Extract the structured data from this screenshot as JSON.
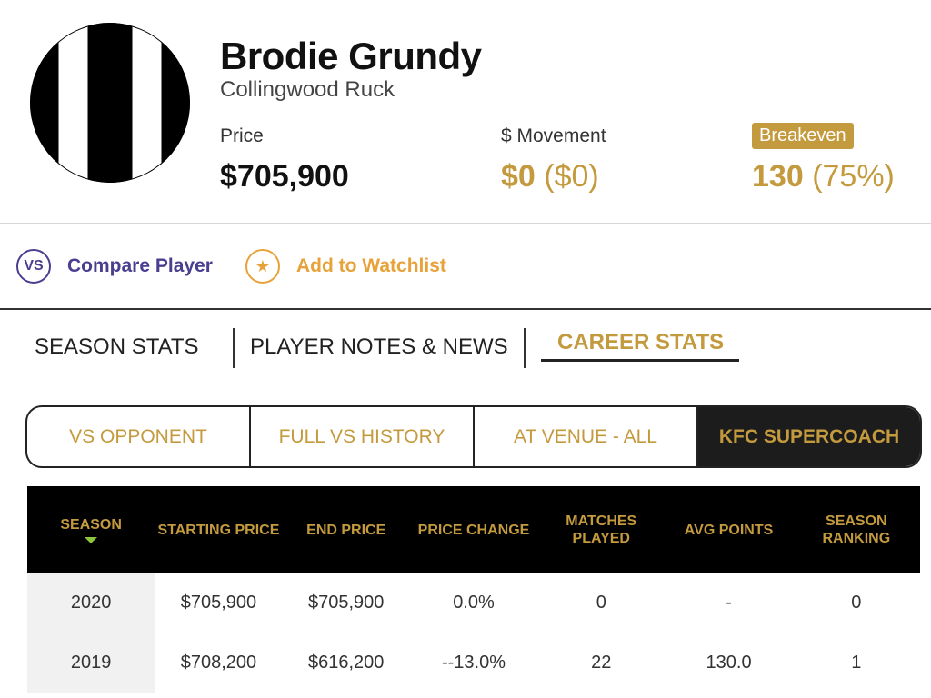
{
  "player": {
    "name": "Brodie Grundy",
    "team_position": "Collingwood Ruck",
    "price_label": "Price",
    "price_value": "$705,900",
    "movement_label": "$ Movement",
    "movement_value": "$0",
    "movement_paren": "($0)",
    "breakeven_label": "Breakeven",
    "breakeven_value": "130",
    "breakeven_paren": "(75%)"
  },
  "actions": {
    "compare_icon": "VS",
    "compare_label": "Compare Player",
    "watchlist_icon": "★",
    "watchlist_label": "Add to Watchlist"
  },
  "tabs": [
    {
      "label": "SEASON STATS"
    },
    {
      "label": "PLAYER NOTES & NEWS"
    },
    {
      "label": "CAREER STATS"
    }
  ],
  "subtabs": [
    {
      "label": "VS OPPONENT"
    },
    {
      "label": "FULL VS HISTORY"
    },
    {
      "label": "AT VENUE - ALL"
    },
    {
      "label": "KFC SUPERCOACH"
    }
  ],
  "table": {
    "headers": [
      "SEASON",
      "STARTING PRICE",
      "END PRICE",
      "PRICE CHANGE",
      "MATCHES PLAYED",
      "AVG POINTS",
      "SEASON RANKING"
    ],
    "rows": [
      [
        "2020",
        "$705,900",
        "$705,900",
        "0.0%",
        "0",
        "-",
        "0"
      ],
      [
        "2019",
        "$708,200",
        "$616,200",
        "--13.0%",
        "22",
        "130.0",
        "1"
      ]
    ]
  },
  "colors": {
    "gold": "#c49a3e",
    "purple": "#4a3f8f",
    "orange": "#e8a23a",
    "sort_indicator": "#8cc63f"
  }
}
